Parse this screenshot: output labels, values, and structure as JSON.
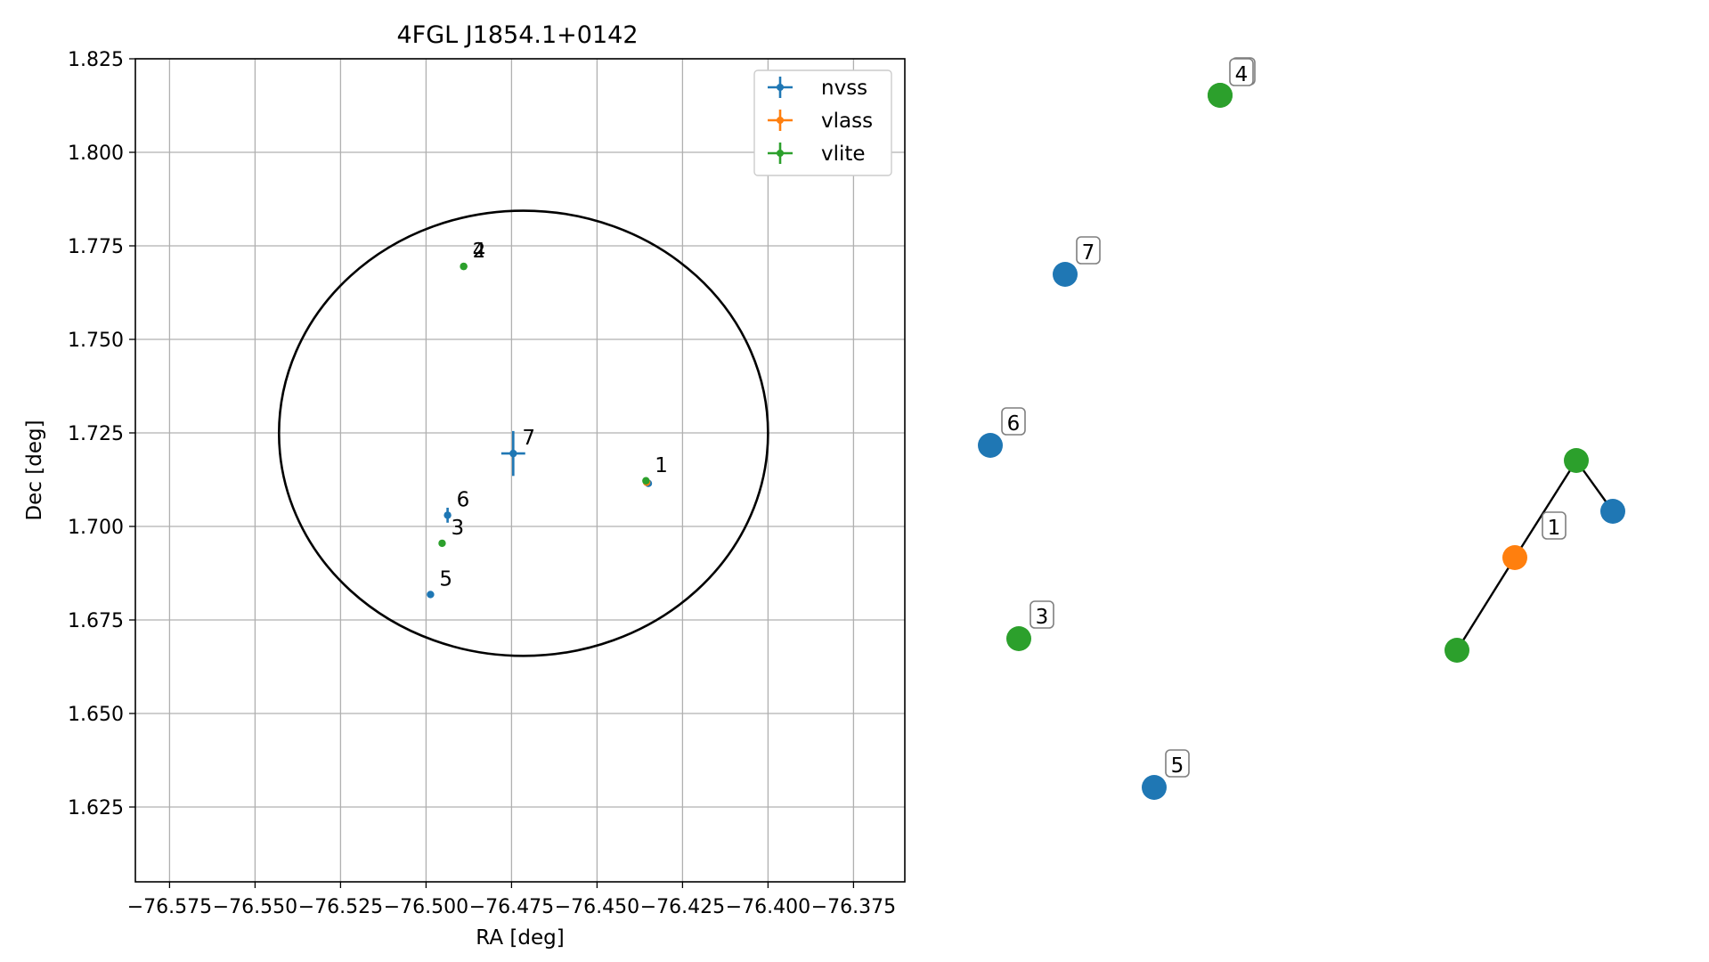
{
  "chart_data": [
    {
      "type": "scatter",
      "title": "4FGL J1854.1+0142",
      "xlabel": "RA [deg]",
      "ylabel": "Dec [deg]",
      "xlim": [
        -76.585,
        -76.36
      ],
      "ylim": [
        1.605,
        1.825
      ],
      "xticks": [
        -76.575,
        -76.55,
        -76.525,
        -76.5,
        -76.475,
        -76.45,
        -76.425,
        -76.4,
        -76.375
      ],
      "xtick_labels": [
        "−76.575",
        "−76.550",
        "−76.525",
        "−76.500",
        "−76.475",
        "−76.450",
        "−76.425",
        "−76.400",
        "−76.375"
      ],
      "yticks": [
        1.625,
        1.65,
        1.675,
        1.7,
        1.725,
        1.75,
        1.775,
        1.8,
        1.825
      ],
      "ytick_labels": [
        "1.625",
        "1.650",
        "1.675",
        "1.700",
        "1.725",
        "1.750",
        "1.775",
        "1.800",
        "1.825"
      ],
      "grid": true,
      "legend_position": "top-right",
      "series": [
        {
          "name": "nvss",
          "color": "#1f77b4",
          "points": [
            {
              "ra": -76.4745,
              "dec": 1.7195,
              "ra_err": 0.0035,
              "dec_err": 0.006,
              "label": "7"
            },
            {
              "ra": -76.4937,
              "dec": 1.703,
              "ra_err": 0.0008,
              "dec_err": 0.002,
              "label": "6"
            },
            {
              "ra": -76.4987,
              "dec": 1.6818,
              "ra_err": 0.001,
              "dec_err": 0.0005,
              "label": "5"
            },
            {
              "ra": -76.435,
              "dec": 1.7115,
              "ra_err": 0.0005,
              "dec_err": 0.0005,
              "label": ""
            }
          ]
        },
        {
          "name": "vlass",
          "color": "#ff7f0e",
          "points": [
            {
              "ra": -76.4355,
              "dec": 1.7118,
              "ra_err": 0.0002,
              "dec_err": 0.0002,
              "label": ""
            }
          ]
        },
        {
          "name": "vlite",
          "color": "#2ca02c",
          "points": [
            {
              "ra": -76.4357,
              "dec": 1.7122,
              "ra_err": 0.0005,
              "dec_err": 0.0005,
              "label": "1"
            },
            {
              "ra": -76.489,
              "dec": 1.7695,
              "ra_err": 0.0008,
              "dec_err": 0.0008,
              "label": "2"
            },
            {
              "ra": -76.489,
              "dec": 1.7695,
              "ra_err": 0.0008,
              "dec_err": 0.0008,
              "label": "4"
            },
            {
              "ra": -76.4953,
              "dec": 1.6955,
              "ra_err": 0.0006,
              "dec_err": 0.0006,
              "label": "3"
            }
          ]
        }
      ],
      "ellipse": {
        "center_ra": -76.4715,
        "center_dec": 1.7249,
        "half_width_ra": 0.0715,
        "half_height_dec": 0.0595
      }
    },
    {
      "type": "network",
      "nodes": [
        {
          "id": "4",
          "label": "4",
          "color": "#2ca02c"
        },
        {
          "id": "4b",
          "label": "4",
          "color": "#2ca02c"
        },
        {
          "id": "7",
          "label": "7",
          "color": "#1f77b4"
        },
        {
          "id": "6",
          "label": "6",
          "color": "#1f77b4"
        },
        {
          "id": "3",
          "label": "3",
          "color": "#2ca02c"
        },
        {
          "id": "5",
          "label": "5",
          "color": "#1f77b4"
        },
        {
          "id": "1a",
          "label": "",
          "color": "#2ca02c"
        },
        {
          "id": "1b",
          "label": "",
          "color": "#1f77b4"
        },
        {
          "id": "1",
          "label": "1",
          "color": "#ff7f0e"
        },
        {
          "id": "1c",
          "label": "",
          "color": "#2ca02c"
        }
      ],
      "edges": [
        [
          "1a",
          "1b"
        ],
        [
          "1a",
          "1"
        ],
        [
          "1",
          "1c"
        ]
      ]
    }
  ]
}
